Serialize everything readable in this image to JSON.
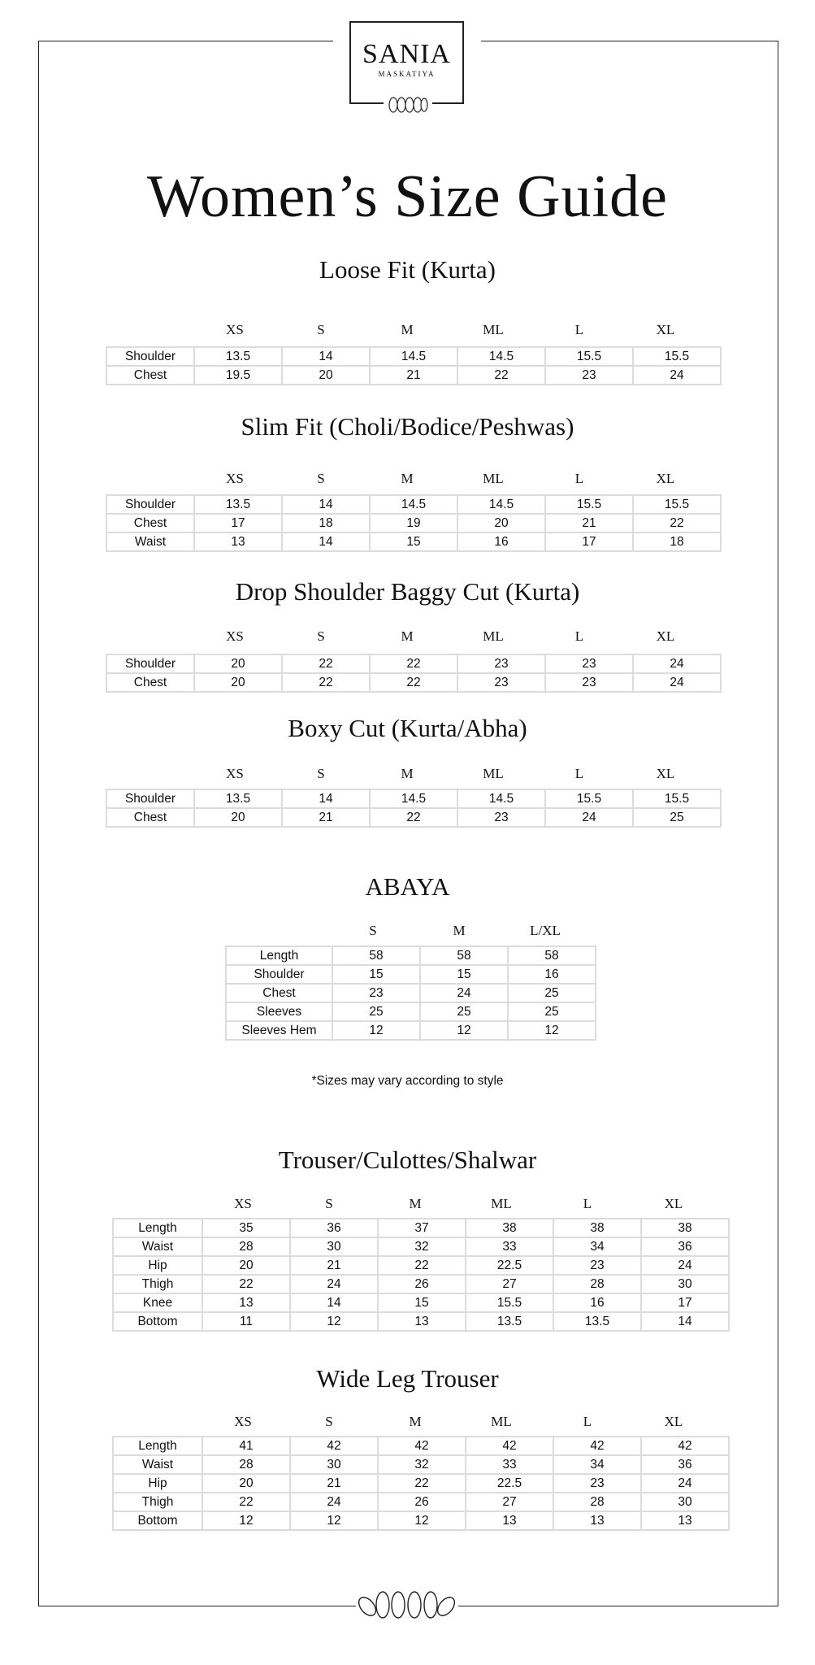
{
  "brand": {
    "name": "SANIA",
    "sub": "MASKATIYA"
  },
  "title": "Women’s Size Guide",
  "sections": [
    {
      "title": "Loose Fit (Kurta)",
      "columns": [
        "XS",
        "S",
        "M",
        "ML",
        "L",
        "XL"
      ],
      "rows": [
        {
          "label": "Shoulder",
          "values": [
            "13.5",
            "14",
            "14.5",
            "14.5",
            "15.5",
            "15.5"
          ]
        },
        {
          "label": "Chest",
          "values": [
            "19.5",
            "20",
            "21",
            "22",
            "23",
            "24"
          ]
        }
      ]
    },
    {
      "title": "Slim Fit (Choli/Bodice/Peshwas)",
      "columns": [
        "XS",
        "S",
        "M",
        "ML",
        "L",
        "XL"
      ],
      "rows": [
        {
          "label": "Shoulder",
          "values": [
            "13.5",
            "14",
            "14.5",
            "14.5",
            "15.5",
            "15.5"
          ]
        },
        {
          "label": "Chest",
          "values": [
            "17",
            "18",
            "19",
            "20",
            "21",
            "22"
          ]
        },
        {
          "label": "Waist",
          "values": [
            "13",
            "14",
            "15",
            "16",
            "17",
            "18"
          ]
        }
      ]
    },
    {
      "title": "Drop Shoulder Baggy Cut (Kurta)",
      "columns": [
        "XS",
        "S",
        "M",
        "ML",
        "L",
        "XL"
      ],
      "rows": [
        {
          "label": "Shoulder",
          "values": [
            "20",
            "22",
            "22",
            "23",
            "23",
            "24"
          ]
        },
        {
          "label": "Chest",
          "values": [
            "20",
            "22",
            "22",
            "23",
            "23",
            "24"
          ]
        }
      ]
    },
    {
      "title": "Boxy Cut (Kurta/Abha)",
      "columns": [
        "XS",
        "S",
        "M",
        "ML",
        "L",
        "XL"
      ],
      "rows": [
        {
          "label": "Shoulder",
          "values": [
            "13.5",
            "14",
            "14.5",
            "14.5",
            "15.5",
            "15.5"
          ]
        },
        {
          "label": "Chest",
          "values": [
            "20",
            "21",
            "22",
            "23",
            "24",
            "25"
          ]
        }
      ]
    },
    {
      "title": "ABAYA",
      "columns": [
        "S",
        "M",
        "L/XL"
      ],
      "rows": [
        {
          "label": "Length",
          "values": [
            "58",
            "58",
            "58"
          ]
        },
        {
          "label": "Shoulder",
          "values": [
            "15",
            "15",
            "16"
          ]
        },
        {
          "label": "Chest",
          "values": [
            "23",
            "24",
            "25"
          ]
        },
        {
          "label": "Sleeves",
          "values": [
            "25",
            "25",
            "25"
          ]
        },
        {
          "label": "Sleeves Hem",
          "values": [
            "12",
            "12",
            "12"
          ]
        }
      ]
    },
    {
      "title": "Trouser/Culottes/Shalwar",
      "columns": [
        "XS",
        "S",
        "M",
        "ML",
        "L",
        "XL"
      ],
      "rows": [
        {
          "label": "Length",
          "values": [
            "35",
            "36",
            "37",
            "38",
            "38",
            "38"
          ]
        },
        {
          "label": "Waist",
          "values": [
            "28",
            "30",
            "32",
            "33",
            "34",
            "36"
          ]
        },
        {
          "label": "Hip",
          "values": [
            "20",
            "21",
            "22",
            "22.5",
            "23",
            "24"
          ]
        },
        {
          "label": "Thigh",
          "values": [
            "22",
            "24",
            "26",
            "27",
            "28",
            "30"
          ]
        },
        {
          "label": "Knee",
          "values": [
            "13",
            "14",
            "15",
            "15.5",
            "16",
            "17"
          ]
        },
        {
          "label": "Bottom",
          "values": [
            "11",
            "12",
            "13",
            "13.5",
            "13.5",
            "14"
          ]
        }
      ]
    },
    {
      "title": "Wide Leg Trouser",
      "columns": [
        "XS",
        "S",
        "M",
        "ML",
        "L",
        "XL"
      ],
      "rows": [
        {
          "label": "Length",
          "values": [
            "41",
            "42",
            "42",
            "42",
            "42",
            "42"
          ]
        },
        {
          "label": "Waist",
          "values": [
            "28",
            "30",
            "32",
            "33",
            "34",
            "36"
          ]
        },
        {
          "label": "Hip",
          "values": [
            "20",
            "21",
            "22",
            "22.5",
            "23",
            "24"
          ]
        },
        {
          "label": "Thigh",
          "values": [
            "22",
            "24",
            "26",
            "27",
            "28",
            "30"
          ]
        },
        {
          "label": "Bottom",
          "values": [
            "12",
            "12",
            "12",
            "13",
            "13",
            "13"
          ]
        }
      ]
    }
  ],
  "note": "*Sizes may vary according to style"
}
